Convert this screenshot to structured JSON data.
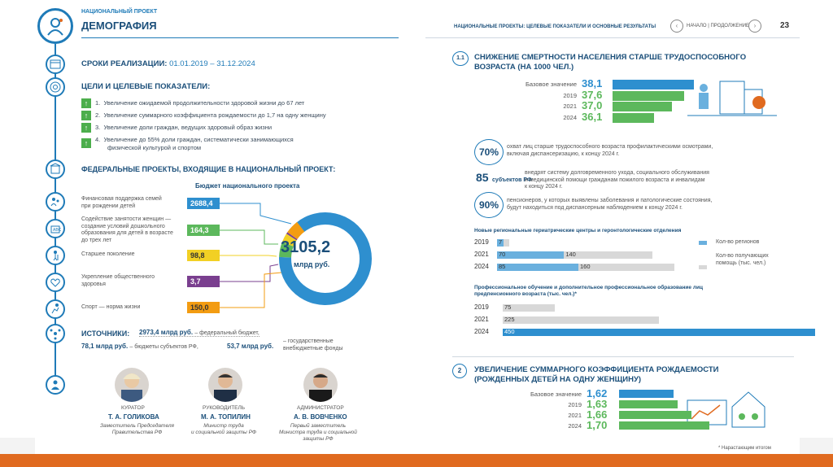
{
  "left": {
    "header_small": "НАЦИОНАЛЬНЫЙ ПРОЕКТ",
    "header_title": "ДЕМОГРАФИЯ",
    "terms_label": "СРОКИ РЕАЛИЗАЦИИ:",
    "terms_value": "01.01.2019 – 31.12.2024",
    "goals_title": "ЦЕЛИ И ЦЕЛЕВЫЕ ПОКАЗАТЕЛИ:",
    "goals": [
      {
        "num": "1.",
        "text": "Увеличение ожидаемой продолжительности здоровой жизни до 67 лет"
      },
      {
        "num": "2.",
        "text": "Увеличение суммарного коэффициента рождаемости до 1,7 на одну женщину"
      },
      {
        "num": "3.",
        "text": "Увеличение доли граждан, ведущих здоровый образ жизни"
      },
      {
        "num": "4.",
        "text": "Увеличение до 55% доли граждан, систематически занимающихся",
        "text2": "физической культурой и спортом"
      }
    ],
    "fed_title": "ФЕДЕРАЛЬНЫЕ ПРОЕКТЫ, ВХОДЯЩИЕ В НАЦИОНАЛЬНЫЙ ПРОЕКТ:",
    "budget_title": "Бюджет национального проекта",
    "budget_total": "3105,2",
    "budget_unit": "млрд руб.",
    "projects": [
      {
        "l1": "Финансовая поддержка семей",
        "l2": "при рождении детей",
        "l3": "",
        "l4": "",
        "value": "2688,4",
        "color": "#2e8fcf",
        "amount": 2688.4
      },
      {
        "l1": "Содействие занятости женщин —",
        "l2": "создание условий дошкольного",
        "l3": "образования для детей в возрасте",
        "l4": "до трех лет",
        "value": "164,3",
        "color": "#5cb85c",
        "amount": 164.3
      },
      {
        "l1": "Старшее поколение",
        "l2": "",
        "l3": "",
        "l4": "",
        "value": "98,8",
        "color": "#f2d024",
        "amount": 98.8
      },
      {
        "l1": "Укрепление общественного",
        "l2": "здоровья",
        "l3": "",
        "l4": "",
        "value": "3,7",
        "color": "#7a3f8f",
        "amount": 3.7
      },
      {
        "l1": "Спорт — норма жизни",
        "l2": "",
        "l3": "",
        "l4": "",
        "value": "150,0",
        "color": "#f39c12",
        "amount": 150.0
      }
    ],
    "sources_label": "ИСТОЧНИКИ:",
    "src1_val": "2973,4 млрд руб.",
    "src1_text": "– федеральный бюджет,",
    "src2_val": "78,1 млрд руб.",
    "src2_text": "– бюджеты субъектов РФ,",
    "src3_val": "53,7 млрд руб.",
    "src3_text": "– государственные",
    "src3_text2": "внебюджетные фонды",
    "people": [
      {
        "role": "КУРАТОР",
        "name": "Т. А. ГОЛИКОВА",
        "d1": "Заместитель Председателя",
        "d2": "Правительства РФ",
        "d3": ""
      },
      {
        "role": "РУКОВОДИТЕЛЬ",
        "name": "М. А. ТОПИЛИН",
        "d1": "Министр труда",
        "d2": "и социальной защиты РФ",
        "d3": ""
      },
      {
        "role": "АДМИНИСТРАТОР",
        "name": "А. В. ВОВЧЕНКО",
        "d1": "Первый заместитель",
        "d2": "Министра труда и социальной",
        "d3": "защиты РФ"
      }
    ]
  },
  "right": {
    "header": "НАЦИОНАЛЬНЫЕ ПРОЕКТЫ: ЦЕЛЕВЫЕ ПОКАЗАТЕЛИ И ОСНОВНЫЕ РЕЗУЛЬТАТЫ",
    "nav": "НАЧАЛО | ПРОДОЛЖЕНИЕ",
    "page": "23",
    "s1_num": "1.1",
    "s1_title1": "СНИЖЕНИЕ СМЕРТНОСТИ НАСЕЛЕНИЯ СТАРШЕ ТРУДОСПОСОБНОГО",
    "s1_title2": "ВОЗРАСТА (НА 1000 ЧЕЛ.)",
    "mortality": [
      {
        "label": "Базовое значение",
        "value": "38,1",
        "num": 38.1,
        "color": "#2e8fcf"
      },
      {
        "label": "2019",
        "value": "37,6",
        "num": 37.6,
        "color": "#5cb85c"
      },
      {
        "label": "2021",
        "value": "37,0",
        "num": 37.0,
        "color": "#5cb85c"
      },
      {
        "label": "2024",
        "value": "36,1",
        "num": 36.1,
        "color": "#5cb85c"
      }
    ],
    "k1_pct": "70%",
    "k1_text1": "охват лиц старше трудоспособного возраста профилактическими осмотрами,",
    "k1_text2": "включая диспансеризацию, к концу 2024 г.",
    "k2_num": "85",
    "k2_unit": "субъектов РФ",
    "k2_text1": "внедрят систему долговременного ухода, социального обслуживания",
    "k2_text2": "и медицинской помощи гражданам пожилого возраста и инвалидам",
    "k2_text3": "к концу 2024 г.",
    "k3_pct": "90%",
    "k3_text1": "пенсионеров, у которых выявлены заболевания и патологические состояния,",
    "k3_text2": "будут находиться под диспансерным наблюдением к концу 2024 г.",
    "centers_title": "Новые региональные гериатрические центры и геронтологические отделения",
    "centers": [
      {
        "year": "2019",
        "regions": "7",
        "regions_num": 7,
        "people": "11",
        "people_num": 11
      },
      {
        "year": "2021",
        "regions": "70",
        "regions_num": 70,
        "people": "140",
        "people_num": 140
      },
      {
        "year": "2024",
        "regions": "85",
        "regions_num": 85,
        "people": "160",
        "people_num": 160
      }
    ],
    "legend_regions": "Кол-во регионов",
    "legend_people1": "Кол-во получающих",
    "legend_people2": "помощь (тыс. чел.)",
    "edu_title1": "Профессиональное обучение и дополнительное профессиональное образование лиц",
    "edu_title2": "предпенсионного возраста (тыс. чел.)*",
    "edu": [
      {
        "year": "2019",
        "value": "75",
        "num": 75,
        "color": "#d8d8d8"
      },
      {
        "year": "2021",
        "value": "225",
        "num": 225,
        "color": "#d8d8d8"
      },
      {
        "year": "2024",
        "value": "450",
        "num": 450,
        "color": "#2e8fcf"
      }
    ],
    "s2_num": "2",
    "s2_title1": "УВЕЛИЧЕНИЕ СУММАРНОГО КОЭФФИЦИЕНТА РОЖДАЕМОСТИ",
    "s2_title2": "(РОЖДЕННЫХ ДЕТЕЙ НА ОДНУ ЖЕНЩИНУ)",
    "fertility": [
      {
        "label": "Базовое значение",
        "value": "1,62",
        "num": 1.62,
        "color": "#2e8fcf"
      },
      {
        "label": "2019",
        "value": "1,63",
        "num": 1.63,
        "color": "#5cb85c"
      },
      {
        "label": "2021",
        "value": "1,66",
        "num": 1.66,
        "color": "#5cb85c"
      },
      {
        "label": "2024",
        "value": "1,70",
        "num": 1.7,
        "color": "#5cb85c"
      }
    ],
    "footnote": "* Нарастающим итогом"
  },
  "colors": {
    "accent": "#1f7bb8",
    "green": "#5cb85c",
    "bottom": "#e06a1f"
  }
}
